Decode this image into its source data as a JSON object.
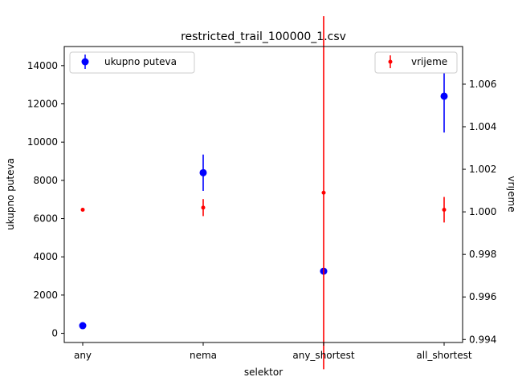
{
  "chart_data": {
    "type": "errorbar",
    "title": "restricted_trail_100000_1.csv",
    "xlabel": "selektor",
    "ylabel_left": "ukupno puteva",
    "ylabel_right": "vrijeme",
    "categories": [
      "any",
      "nema",
      "any_shortest",
      "all_shortest"
    ],
    "ylim_left": [
      -480,
      15000
    ],
    "ylim_right": [
      0.99386,
      1.00777
    ],
    "yticks_left": [
      0,
      2000,
      4000,
      6000,
      8000,
      10000,
      12000,
      14000
    ],
    "yticks_right": [
      0.994,
      0.996,
      0.998,
      1.0,
      1.002,
      1.004,
      1.006
    ],
    "yticks_right_labels": [
      "0.994",
      "0.996",
      "0.998",
      "1.000",
      "1.002",
      "1.004",
      "1.006"
    ],
    "grid": false,
    "series": [
      {
        "name": "ukupno puteva",
        "axis": "left",
        "color": "#0000ff",
        "values": [
          400,
          8400,
          3250,
          12400
        ],
        "errors": [
          0,
          950,
          0,
          1900
        ]
      },
      {
        "name": "vrijeme",
        "axis": "right",
        "color": "#ff0000",
        "values": [
          1.0001,
          1.0002,
          1.0009,
          1.0001
        ],
        "errors": [
          5e-05,
          0.0004,
          0.0083,
          0.0006
        ]
      }
    ],
    "legend": [
      {
        "label": "ukupno puteva",
        "placement": "upper-left"
      },
      {
        "label": "vrijeme",
        "placement": "upper-right"
      }
    ]
  }
}
